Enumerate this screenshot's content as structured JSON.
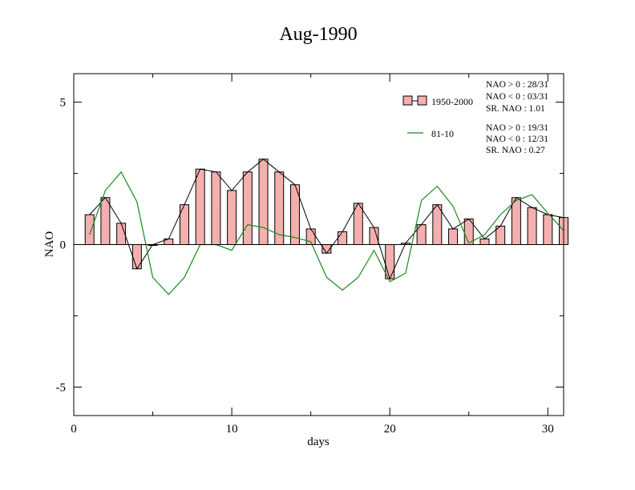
{
  "chart_data": {
    "type": "bar",
    "title": "Aug-1990",
    "xlabel": "days",
    "ylabel": "NAO",
    "xlim": [
      0,
      31
    ],
    "ylim": [
      -6,
      6
    ],
    "x_ticks": [
      0,
      10,
      20,
      30
    ],
    "y_ticks": [
      -5,
      0,
      5
    ],
    "x": [
      1,
      2,
      3,
      4,
      5,
      6,
      7,
      8,
      9,
      10,
      11,
      12,
      13,
      14,
      15,
      16,
      17,
      18,
      19,
      20,
      21,
      22,
      23,
      24,
      25,
      26,
      27,
      28,
      29,
      30,
      31
    ],
    "series": [
      {
        "name": "1950-2000",
        "kind": "bar-with-line",
        "color": "#e86060",
        "line_color": "#000000",
        "values": [
          1.05,
          1.65,
          0.75,
          -0.85,
          0.0,
          0.2,
          1.4,
          2.65,
          2.55,
          1.9,
          2.55,
          3.0,
          2.55,
          2.1,
          0.55,
          -0.3,
          0.45,
          1.45,
          0.6,
          -1.2,
          0.05,
          0.7,
          1.4,
          0.55,
          0.9,
          0.2,
          0.65,
          1.65,
          1.3,
          1.05,
          0.95
        ]
      },
      {
        "name": "81-10",
        "kind": "line",
        "color": "#1a8a1a",
        "values": [
          0.35,
          1.9,
          2.55,
          1.5,
          -1.15,
          -1.75,
          -1.15,
          0.0,
          0.0,
          -0.2,
          0.7,
          0.6,
          0.35,
          0.25,
          0.1,
          -1.15,
          -1.6,
          -1.15,
          -0.2,
          -1.3,
          -1.0,
          1.55,
          2.05,
          1.35,
          0.05,
          0.35,
          1.05,
          1.55,
          1.75,
          1.1,
          0.5
        ]
      }
    ],
    "legend": {
      "placement": "top-right",
      "stats": {
        "1950-2000": [
          "NAO > 0 : 28/31",
          "NAO < 0 : 03/31",
          "SR. NAO :  1.01"
        ],
        "81-10": [
          "NAO > 0 : 19/31",
          "NAO < 0 : 12/31",
          "SR. NAO :  0.27"
        ]
      }
    },
    "grid": false
  }
}
